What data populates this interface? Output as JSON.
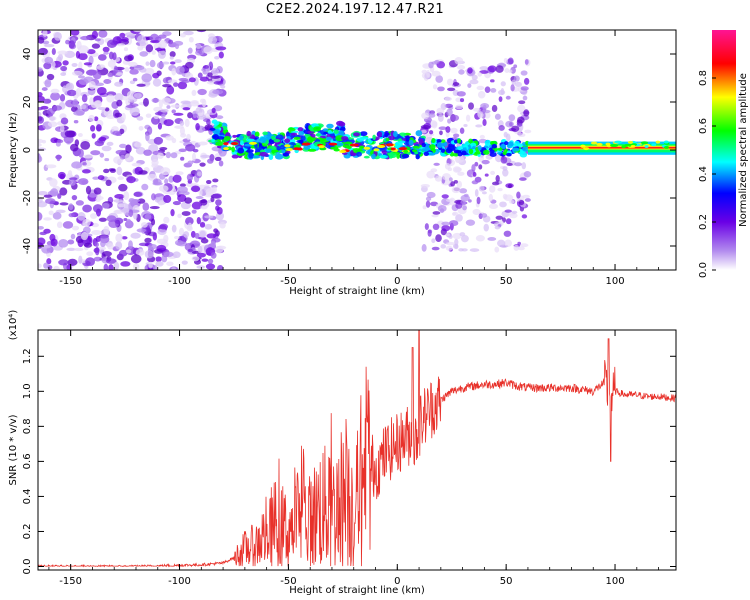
{
  "title": "C2E2.2024.197.12.47.R21",
  "chart_data": [
    {
      "type": "heatmap",
      "xlabel": "Height of straight line (km)",
      "ylabel": "Frequency (Hz)",
      "xlim": [
        -165,
        128
      ],
      "ylim": [
        -50,
        50
      ],
      "xticks": [
        -150,
        -100,
        -50,
        0,
        50,
        100
      ],
      "yticks": [
        -40,
        -20,
        0,
        20,
        40
      ],
      "colorbar": {
        "label": "Normalized spectral amplitude",
        "range": [
          0,
          1
        ],
        "ticks": [
          "0.0",
          "0.2",
          "0.4",
          "0.6",
          "0.8"
        ],
        "colormap": [
          "#ffffff",
          "#8a2be2",
          "#0000ff",
          "#00ffff",
          "#00ff00",
          "#ffff00",
          "#ff0000",
          "#ff1493"
        ]
      },
      "regions": [
        {
          "x": [
            -165,
            -80
          ],
          "freq_spread": 50,
          "description_level": "broadband noise, amplitude ~0.1-0.3"
        },
        {
          "x": [
            -80,
            12
          ],
          "freq_center": 2,
          "freq_spread": 6,
          "amplitude": 0.5
        },
        {
          "x": [
            12,
            60
          ],
          "freq_spread": 40,
          "amplitude": 0.25
        },
        {
          "x": [
            60,
            128
          ],
          "freq_center": 1,
          "freq_spread": 2,
          "amplitude": 0.85
        }
      ],
      "grid": false
    },
    {
      "type": "line",
      "xlabel": "Height of straight line (km)",
      "ylabel": "SNR (10 * v/v)",
      "y_multiplier": "(x10⁴)",
      "xlim": [
        -165,
        128
      ],
      "ylim": [
        -0.02,
        1.35
      ],
      "xticks": [
        -150,
        -100,
        -50,
        0,
        50,
        100
      ],
      "yticks": [
        "0.0",
        "0.2",
        "0.4",
        "0.6",
        "0.8",
        "1.0",
        "1.2"
      ],
      "series": [
        {
          "color": "#e8312a",
          "x": [
            -165,
            -120,
            -90,
            -80,
            -75,
            -70,
            -65,
            -60,
            -55,
            -50,
            -45,
            -40,
            -35,
            -30,
            -25,
            -20,
            -15,
            -12,
            -10,
            -5,
            0,
            5,
            8,
            10,
            12,
            15,
            20,
            25,
            30,
            35,
            40,
            45,
            50,
            55,
            60,
            70,
            80,
            85,
            90,
            95,
            98,
            100,
            105,
            110,
            115,
            120,
            128
          ],
          "y": [
            0.0,
            0.0,
            0.01,
            0.02,
            0.05,
            0.1,
            0.12,
            0.2,
            0.25,
            0.2,
            0.3,
            0.25,
            0.35,
            0.3,
            0.4,
            0.35,
            0.45,
            0.6,
            0.55,
            0.65,
            0.7,
            0.75,
            0.7,
            0.8,
            0.85,
            0.9,
            0.95,
            1.0,
            1.02,
            1.03,
            1.04,
            1.04,
            1.05,
            1.03,
            1.02,
            1.02,
            1.02,
            1.01,
            1.0,
            1.05,
            0.95,
            1.0,
            0.98,
            0.98,
            0.97,
            0.97,
            0.96
          ]
        }
      ],
      "grid": false
    }
  ]
}
